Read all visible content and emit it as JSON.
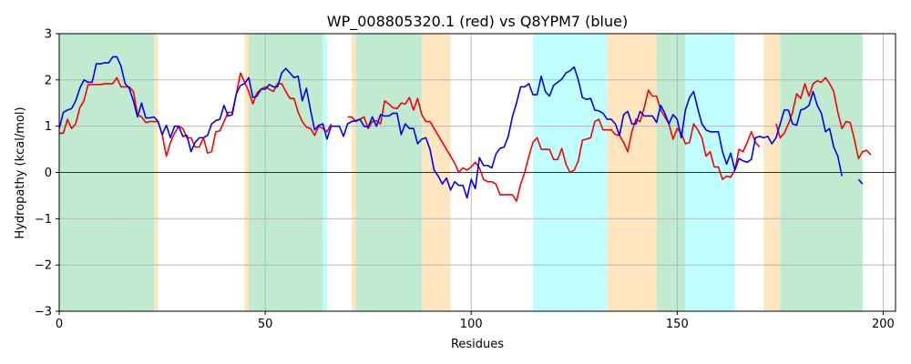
{
  "chart_data": {
    "type": "line",
    "title": "WP_008805320.1 (red) vs Q8YPM7 (blue)",
    "xlabel": "Residues",
    "ylabel": "Hydropathy (kcal/mol)",
    "xlim": [
      0,
      203
    ],
    "ylim": [
      -3,
      3
    ],
    "xticks": [
      0,
      50,
      100,
      150,
      200
    ],
    "yticks": [
      -3,
      -2,
      -1,
      0,
      1,
      2,
      3
    ],
    "grid": true,
    "zero_line": true,
    "colors": {
      "red": "#ff0000",
      "blue": "#0000ff",
      "green_region": "#c0ebd0",
      "cyan_region": "#c0ffff",
      "orange_region": "#ffe6c0"
    },
    "regions": [
      {
        "start": 0,
        "end": 23,
        "type": "green"
      },
      {
        "start": 23,
        "end": 24,
        "type": "orange"
      },
      {
        "start": 45,
        "end": 46,
        "type": "orange"
      },
      {
        "start": 46,
        "end": 64,
        "type": "green"
      },
      {
        "start": 64,
        "end": 65,
        "type": "cyan"
      },
      {
        "start": 71,
        "end": 72,
        "type": "orange"
      },
      {
        "start": 72,
        "end": 88,
        "type": "green"
      },
      {
        "start": 88,
        "end": 95,
        "type": "orange"
      },
      {
        "start": 115,
        "end": 133,
        "type": "cyan"
      },
      {
        "start": 133,
        "end": 145,
        "type": "orange"
      },
      {
        "start": 145,
        "end": 152,
        "type": "green"
      },
      {
        "start": 152,
        "end": 164,
        "type": "cyan"
      },
      {
        "start": 171,
        "end": 175,
        "type": "orange"
      },
      {
        "start": 175,
        "end": 195,
        "type": "green"
      }
    ],
    "series": [
      {
        "color": "red",
        "segments": [
          {
            "x_start": 0,
            "values": [
              0.85,
              0.85,
              1.15,
              0.95,
              1.05,
              1.4,
              1.55,
              1.9,
              1.9,
              1.9,
              1.9,
              1.92,
              1.92,
              1.92,
              2.05,
              1.85,
              1.85,
              1.85,
              1.75,
              1.25,
              1.2,
              1.08,
              1.1,
              1.1,
              1.1,
              0.82,
              0.35,
              0.65,
              0.85,
              1.0,
              0.95,
              0.75,
              0.75,
              0.55,
              0.55,
              0.75,
              0.42,
              0.45,
              0.88,
              0.9,
              1.1,
              1.3,
              1.3,
              1.7,
              2.15,
              1.95,
              1.75,
              1.48,
              1.72,
              1.8,
              1.85,
              1.8,
              1.75,
              1.92,
              1.92,
              1.75,
              1.6,
              1.6,
              1.3,
              1.1,
              0.98,
              0.95,
              0.8,
              1.0,
              0.95,
              0.88,
              1.05
            ]
          },
          {
            "x_start": 70,
            "values": [
              1.2,
              1.2,
              1.1,
              1.15,
              1.2,
              0.95,
              1.1,
              1.12,
              1.05,
              1.55,
              1.48,
              1.4,
              1.38,
              1.5,
              1.48,
              1.62,
              1.35,
              1.6,
              1.25,
              1.1,
              1.1,
              0.95,
              0.8,
              0.65,
              0.5,
              0.35,
              0.2,
              0.0,
              0.1,
              0.05,
              0.12,
              0.22,
              0.1,
              -0.15,
              -0.2,
              -0.2,
              -0.25,
              -0.48,
              -0.48,
              -0.48,
              -0.48,
              -0.62,
              -0.25,
              0.0,
              0.35,
              0.65,
              0.75,
              0.5,
              0.5,
              0.5,
              0.28,
              0.28,
              0.52,
              0.18,
              0.0,
              0.05,
              0.25,
              0.7,
              0.72,
              0.75,
              1.1,
              1.15,
              0.92,
              0.92,
              0.92,
              0.82,
              0.8,
              0.65,
              0.45,
              0.88,
              1.15,
              1.1,
              1.4,
              1.78,
              1.65,
              1.65,
              1.35,
              1.2,
              1.05,
              0.72,
              0.95,
              0.85,
              0.62,
              0.65,
              1.05,
              0.92,
              0.75,
              0.35,
              0.45,
              0.12,
              0.12,
              -0.15,
              -0.08,
              -0.1,
              0.05,
              0.5,
              0.45,
              0.65,
              0.88,
              0.65,
              0.55
            ]
          },
          {
            "x_start": 174,
            "values": [
              1.05,
              0.75,
              0.85,
              1.05,
              1.3,
              1.7,
              1.6,
              1.92,
              1.65,
              1.92,
              1.98,
              1.95,
              2.05,
              1.92,
              1.75,
              1.3,
              0.95,
              1.1,
              1.08,
              0.72,
              0.3,
              0.45,
              0.48,
              0.38
            ]
          }
        ]
      },
      {
        "color": "blue",
        "segments": [
          {
            "x_start": 0,
            "values": [
              0.95,
              1.3,
              1.35,
              1.38,
              1.55,
              1.82,
              2.0,
              1.95,
              1.95,
              2.35,
              2.35,
              2.37,
              2.37,
              2.5,
              2.5,
              2.3,
              1.92,
              1.82,
              1.55,
              1.2,
              1.5,
              1.18,
              1.18,
              1.2,
              1.1,
              0.82,
              1.02,
              0.75,
              1.0,
              1.0,
              0.78,
              0.8,
              0.45,
              0.65,
              0.75,
              0.75,
              0.8,
              1.05,
              1.12,
              1.15,
              1.45,
              1.22,
              1.25,
              1.7,
              1.88,
              1.92,
              2.05,
              1.62,
              1.65,
              1.8,
              1.8,
              1.9,
              1.85,
              1.85,
              2.15,
              2.25,
              2.15,
              2.05,
              2.08,
              1.55,
              1.82,
              1.35,
              0.92,
              1.02,
              1.05,
              0.72,
              1.0,
              1.0,
              1.0,
              0.78,
              1.05,
              1.1,
              1.12,
              1.15,
              1.0,
              0.98,
              1.2,
              1.0,
              1.25,
              1.22,
              1.22,
              1.28,
              1.28,
              0.82,
              1.05,
              0.95,
              0.95,
              0.62,
              0.72,
              0.75,
              0.5,
              0.05,
              -0.08,
              -0.25,
              -0.12,
              -0.38,
              -0.2,
              -0.28,
              -0.28,
              -0.55,
              -0.15,
              -0.35,
              0.32,
              0.15,
              0.15,
              0.1,
              0.4,
              0.52,
              0.55,
              0.78,
              1.2,
              1.5,
              1.85,
              1.85,
              1.92,
              1.68,
              1.68,
              2.08,
              1.75,
              1.65,
              1.88,
              1.95,
              2.02,
              2.15,
              2.2,
              2.28,
              2.0,
              1.62,
              1.58,
              1.6,
              1.35,
              1.33,
              1.28,
              1.15,
              1.15,
              1.05,
              0.8,
              1.25,
              1.32,
              1.05,
              1.05,
              1.32,
              1.22,
              1.22,
              1.22,
              1.08,
              1.45,
              1.28,
              1.05,
              1.25,
              1.15,
              0.75,
              1.35,
              1.62,
              1.75,
              1.38,
              1.05,
              0.92,
              0.88,
              0.88,
              0.88,
              0.45,
              0.18,
              0.42,
              0.05,
              0.3,
              0.25,
              0.22,
              0.28,
              0.75,
              0.78,
              0.75,
              0.78,
              0.62,
              0.75,
              1.05,
              1.35,
              1.35,
              1.05,
              1.02,
              1.35,
              1.38,
              1.45,
              1.75,
              1.45,
              1.28,
              0.88,
              0.95,
              0.55,
              0.35,
              -0.08
            ]
          },
          {
            "x_start": 194,
            "values": [
              -0.15,
              -0.25
            ]
          }
        ]
      }
    ]
  }
}
